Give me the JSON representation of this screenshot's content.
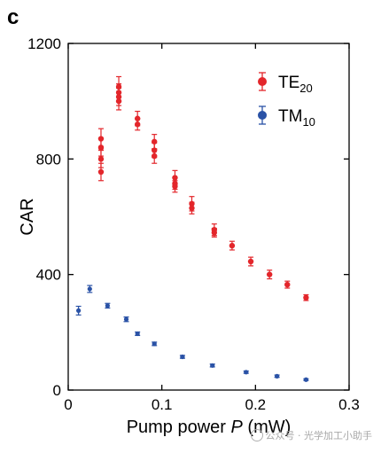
{
  "panel_label": "c",
  "watermark": "公众号 · 光学加工小助手",
  "chart_data": {
    "type": "scatter",
    "xlabel_main": "Pump power ",
    "xlabel_var": "P",
    "xlabel_unit": " (mW)",
    "ylabel": "CAR",
    "xlim": [
      0,
      0.3
    ],
    "ylim": [
      0,
      1200
    ],
    "xticks": [
      {
        "value": 0,
        "label": "0"
      },
      {
        "value": 0.1,
        "label": "0.1"
      },
      {
        "value": 0.2,
        "label": "0.2"
      },
      {
        "value": 0.3,
        "label": "0.3"
      }
    ],
    "yticks": [
      {
        "value": 0,
        "label": "0"
      },
      {
        "value": 400,
        "label": "400"
      },
      {
        "value": 800,
        "label": "800"
      },
      {
        "value": 1200,
        "label": "1200"
      }
    ],
    "grid": false,
    "legend_position": "top-right",
    "series": [
      {
        "name_base": "TE",
        "name_sub": "20",
        "color": "#e3262b",
        "points": [
          {
            "x": 0.035,
            "y": 870,
            "err": 35
          },
          {
            "x": 0.035,
            "y": 840,
            "err": 30
          },
          {
            "x": 0.035,
            "y": 800,
            "err": 30
          },
          {
            "x": 0.035,
            "y": 755,
            "err": 30
          },
          {
            "x": 0.054,
            "y": 1050,
            "err": 35
          },
          {
            "x": 0.054,
            "y": 1030,
            "err": 30
          },
          {
            "x": 0.054,
            "y": 1015,
            "err": 30
          },
          {
            "x": 0.054,
            "y": 1000,
            "err": 30
          },
          {
            "x": 0.074,
            "y": 940,
            "err": 25
          },
          {
            "x": 0.074,
            "y": 920,
            "err": 20
          },
          {
            "x": 0.092,
            "y": 860,
            "err": 25
          },
          {
            "x": 0.092,
            "y": 830,
            "err": 25
          },
          {
            "x": 0.092,
            "y": 810,
            "err": 25
          },
          {
            "x": 0.114,
            "y": 735,
            "err": 25
          },
          {
            "x": 0.114,
            "y": 715,
            "err": 20
          },
          {
            "x": 0.114,
            "y": 705,
            "err": 20
          },
          {
            "x": 0.132,
            "y": 645,
            "err": 25
          },
          {
            "x": 0.132,
            "y": 630,
            "err": 20
          },
          {
            "x": 0.156,
            "y": 555,
            "err": 20
          },
          {
            "x": 0.156,
            "y": 545,
            "err": 15
          },
          {
            "x": 0.175,
            "y": 500,
            "err": 15
          },
          {
            "x": 0.195,
            "y": 445,
            "err": 15
          },
          {
            "x": 0.215,
            "y": 400,
            "err": 15
          },
          {
            "x": 0.234,
            "y": 365,
            "err": 12
          },
          {
            "x": 0.254,
            "y": 320,
            "err": 10
          }
        ]
      },
      {
        "name_base": "TM",
        "name_sub": "10",
        "color": "#2a52a6",
        "points": [
          {
            "x": 0.011,
            "y": 275,
            "err": 15
          },
          {
            "x": 0.023,
            "y": 350,
            "err": 12
          },
          {
            "x": 0.042,
            "y": 292,
            "err": 8
          },
          {
            "x": 0.062,
            "y": 245,
            "err": 8
          },
          {
            "x": 0.074,
            "y": 195,
            "err": 6
          },
          {
            "x": 0.092,
            "y": 160,
            "err": 6
          },
          {
            "x": 0.122,
            "y": 115,
            "err": 5
          },
          {
            "x": 0.154,
            "y": 85,
            "err": 5
          },
          {
            "x": 0.19,
            "y": 62,
            "err": 4
          },
          {
            "x": 0.223,
            "y": 48,
            "err": 4
          },
          {
            "x": 0.254,
            "y": 36,
            "err": 3
          }
        ]
      }
    ]
  }
}
